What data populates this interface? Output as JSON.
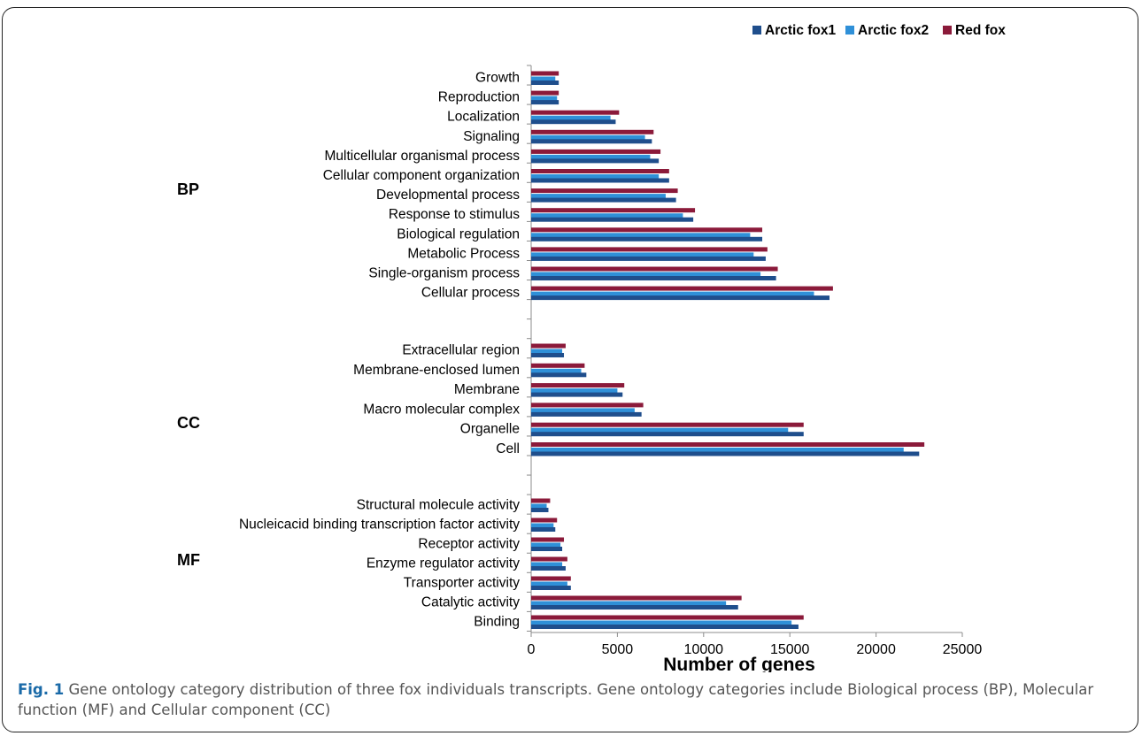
{
  "figure": {
    "label": "Fig. 1",
    "caption": "Gene ontology category distribution of three fox individuals transcripts. Gene ontology categories include Biological process (BP), Molecular function (MF) and Cellular component (CC)"
  },
  "chart_data": {
    "type": "bar",
    "orientation": "horizontal",
    "xlabel": "Number of genes",
    "ylabel": "",
    "xlim": [
      0,
      25000
    ],
    "xticks": [
      0,
      5000,
      10000,
      15000,
      20000,
      25000
    ],
    "grid": false,
    "legend_position": "top",
    "colors": {
      "Arctic fox1": "#1f4e8c",
      "Arctic fox2": "#2f90d8",
      "Red fox": "#8b1a3a"
    },
    "groups": [
      {
        "name": "BP",
        "categories": [
          "Growth",
          "Reproduction",
          "Localization",
          "Signaling",
          "Multicellular organismal process",
          "Cellular component organization",
          "Developmental process",
          "Response to stimulus",
          "Biological regulation",
          "Metabolic Process",
          "Single-organism process",
          "Cellular process"
        ],
        "series": [
          {
            "name": "Arctic fox1",
            "values": [
              1600,
              1600,
              4900,
              7000,
              7400,
              8000,
              8400,
              9400,
              13400,
              13600,
              14200,
              17300
            ]
          },
          {
            "name": "Arctic fox2",
            "values": [
              1400,
              1500,
              4600,
              6600,
              6900,
              7400,
              7800,
              8800,
              12700,
              12900,
              13300,
              16400
            ]
          },
          {
            "name": "Red fox",
            "values": [
              1600,
              1600,
              5100,
              7100,
              7500,
              8000,
              8500,
              9500,
              13400,
              13700,
              14300,
              17500
            ]
          }
        ]
      },
      {
        "name": "CC",
        "categories": [
          "Extracellular region",
          "Membrane-enclosed lumen",
          "Membrane",
          "Macro molecular complex",
          "Organelle",
          "Cell"
        ],
        "series": [
          {
            "name": "Arctic fox1",
            "values": [
              1900,
              3200,
              5300,
              6400,
              15800,
              22500
            ]
          },
          {
            "name": "Arctic fox2",
            "values": [
              1800,
              2900,
              5000,
              6000,
              14900,
              21600
            ]
          },
          {
            "name": "Red fox",
            "values": [
              2000,
              3100,
              5400,
              6500,
              15800,
              22800
            ]
          }
        ]
      },
      {
        "name": "MF",
        "categories": [
          "Structural molecule activity",
          "Nucleicacid binding transcription factor activity",
          "Receptor activity",
          "Enzyme regulator activity",
          "Transporter activity",
          "Catalytic activity",
          "Binding"
        ],
        "series": [
          {
            "name": "Arctic fox1",
            "values": [
              1000,
              1400,
              1800,
              2000,
              2300,
              12000,
              15500
            ]
          },
          {
            "name": "Arctic fox2",
            "values": [
              900,
              1300,
              1700,
              1800,
              2100,
              11300,
              15100
            ]
          },
          {
            "name": "Red fox",
            "values": [
              1100,
              1500,
              1900,
              2100,
              2300,
              12200,
              15800
            ]
          }
        ]
      }
    ]
  }
}
